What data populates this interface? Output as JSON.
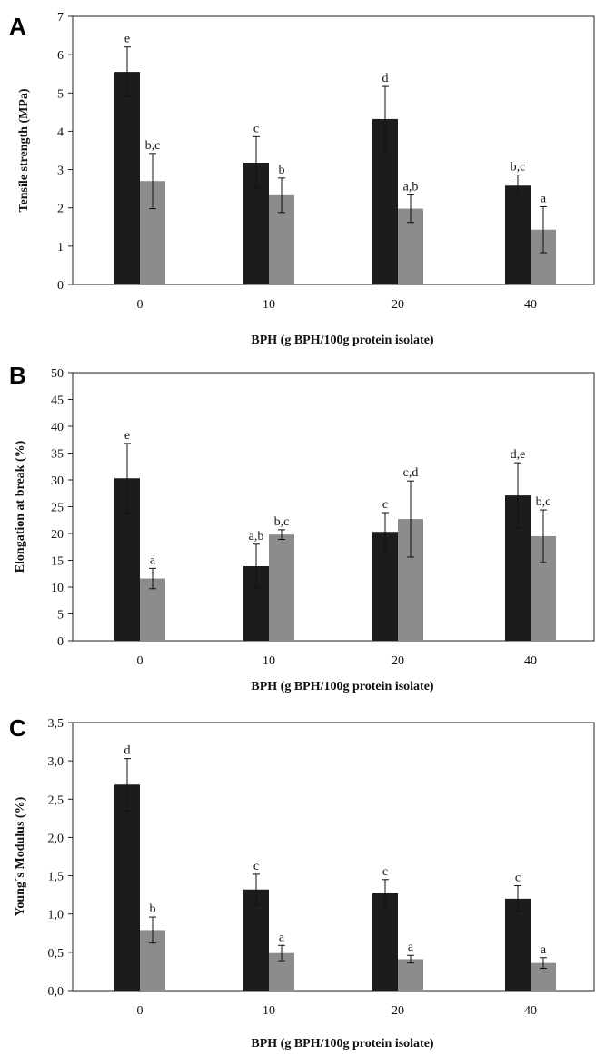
{
  "chart_data": [
    {
      "type": "bar",
      "panel": "A",
      "categories": [
        "0",
        "10",
        "20",
        "40"
      ],
      "xlabel": "BPH (g BPH/100g protein isolate)",
      "ylabel": "Tensile strength (MPa)",
      "ylim": [
        0,
        7
      ],
      "yticks": [
        "0",
        "1",
        "2",
        "3",
        "4",
        "5",
        "6",
        "7"
      ],
      "series": [
        {
          "color": "#1c1c1c",
          "values": [
            5.55,
            3.18,
            4.32,
            2.58
          ],
          "errors": [
            0.65,
            0.68,
            0.85,
            0.28
          ],
          "letters": [
            "e",
            "c",
            "d",
            "b,c"
          ]
        },
        {
          "color": "#8c8c8c",
          "values": [
            2.7,
            2.33,
            1.98,
            1.43
          ],
          "errors": [
            0.72,
            0.45,
            0.36,
            0.6
          ],
          "letters": [
            "b,c",
            "b",
            "a,b",
            "a"
          ]
        }
      ]
    },
    {
      "type": "bar",
      "panel": "B",
      "categories": [
        "0",
        "10",
        "20",
        "40"
      ],
      "xlabel": "BPH (g BPH/100g protein isolate)",
      "ylabel": "Elongation at break (%)",
      "ylim": [
        0,
        50
      ],
      "yticks": [
        "0",
        "5",
        "10",
        "15",
        "20",
        "25",
        "30",
        "35",
        "40",
        "45",
        "50"
      ],
      "series": [
        {
          "color": "#1c1c1c",
          "values": [
            30.3,
            13.9,
            20.3,
            27.1
          ],
          "errors": [
            6.5,
            4.1,
            3.6,
            6.1
          ],
          "letters": [
            "e",
            "a,b",
            "c",
            "d,e"
          ]
        },
        {
          "color": "#8c8c8c",
          "values": [
            11.6,
            19.8,
            22.7,
            19.5
          ],
          "errors": [
            1.9,
            0.9,
            7.1,
            4.9
          ],
          "letters": [
            "a",
            "b,c",
            "c,d",
            "b,c"
          ]
        }
      ]
    },
    {
      "type": "bar",
      "panel": "C",
      "categories": [
        "0",
        "10",
        "20",
        "40"
      ],
      "xlabel": "BPH (g BPH/100g protein isolate)",
      "ylabel": "Young´s Modulus (%)",
      "ylim": [
        0,
        3.5
      ],
      "yticks": [
        "0,0",
        "0,5",
        "1,0",
        "1,5",
        "2,0",
        "2,5",
        "3,0",
        "3,5"
      ],
      "series": [
        {
          "color": "#1c1c1c",
          "values": [
            2.69,
            1.32,
            1.27,
            1.2
          ],
          "errors": [
            0.34,
            0.2,
            0.18,
            0.17
          ],
          "letters": [
            "d",
            "c",
            "c",
            "c"
          ]
        },
        {
          "color": "#8c8c8c",
          "values": [
            0.79,
            0.49,
            0.41,
            0.36
          ],
          "errors": [
            0.17,
            0.1,
            0.05,
            0.07
          ],
          "letters": [
            "b",
            "a",
            "a",
            "a"
          ]
        }
      ]
    }
  ]
}
